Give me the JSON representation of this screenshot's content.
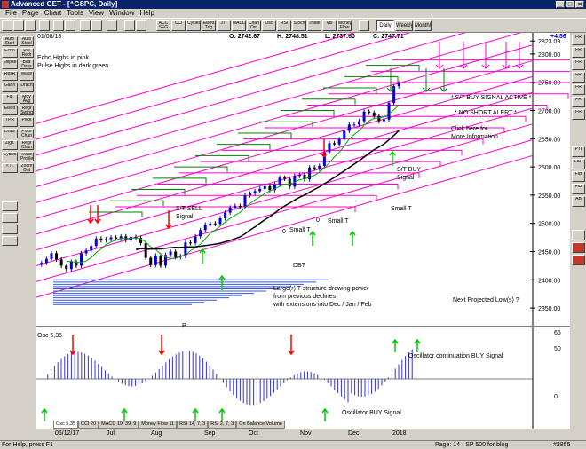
{
  "window": {
    "title": "Advanced GET - [^GSPC, Daily]",
    "controls": [
      "_",
      "□",
      "×"
    ]
  },
  "menu": [
    "File",
    "Page",
    "Chart",
    "Tools",
    "View",
    "Window",
    "Help"
  ],
  "toolbar": {
    "buttons": [
      "ACC SEG",
      "CCI",
      "Cycles",
      "Elliott Trig",
      "JTI",
      "MACD",
      "Chan Ord",
      "Osc",
      "RSI",
      "Stoch",
      "Trade",
      "Vol",
      "Money Flow"
    ],
    "views": [
      "Daily",
      "Weekly",
      "Monthly"
    ],
    "active_view": "Daily"
  },
  "left_tools": [
    "Auto Start",
    "Echo",
    "Ellipse",
    "ResR",
    "Gann",
    "Fib",
    "Elliott",
    "TPR",
    "Draw",
    "ZigZ",
    "Cycles",
    "XTL"
  ],
  "left_tools_2": [
    "Auto Steel",
    "Pul Redr",
    "Bad Days",
    "Make",
    "Drach",
    "Mov Avg",
    "Regr Swing",
    "Pivot",
    "Price Chan",
    "Regr Chan",
    "Trade Profile",
    "Zoom Out"
  ],
  "right_tools": [
    "FR",
    "FR",
    "FR",
    "FR",
    "FR",
    "FR",
    "FR",
    "PTI",
    "ESP",
    "FIB",
    "FIB",
    "AB"
  ],
  "chart_header": {
    "date": "01/08/18",
    "open": "O: 2742.67",
    "high": "H: 2748.51",
    "low": "L: 2737.60",
    "close": "C: 2747.71",
    "change": "+4.56"
  },
  "annotations": {
    "echo": "Echo Highs in pink",
    "pulse": "Pulse Highs in dark green",
    "st_sell": "S/T SELL\nSignal",
    "buy_active": "* S/T BUY SIGNAL ACTIVE *",
    "no_short": "* NO SHORT ALERT *",
    "click_here": "Click here for\nMore Information...",
    "st_buy": "S/T BUY\nSignal",
    "small_t1": "Small T",
    "small_t2": "Small T",
    "small_t3": "Small T",
    "zero1": "0",
    "zero2": "0",
    "dbt": "DBT",
    "large_t": "Large(r) T structure drawing power\nfrom previous declines\nwith extensions into Dec / Jan / Feb",
    "next_low": "Next Projected Low(s) ?",
    "p": "P",
    "osc_cont": "Oscillator continuation BUY Signal",
    "osc_buy": "Oscillator BUY Signal"
  },
  "oscillator": {
    "label": "Osc 5,35",
    "ticks": [
      "65",
      "50",
      "0"
    ]
  },
  "tabs": [
    "Osc 5,35",
    "CCI 20",
    "MACD 19, 39, 9",
    "Money Flow 11",
    "RSI 14, 7, 3",
    "RSI 2, 7, 3",
    "On Balance Volume"
  ],
  "time_axis": [
    "06/12/17",
    "Jul",
    "Aug",
    "Sep",
    "Oct",
    "Nov",
    "Dec",
    "2018"
  ],
  "status": {
    "left": "For Help, press F1",
    "center": "Page: 14 - SP 500 for blog",
    "right": "#2855"
  },
  "chart_data": {
    "type": "candlestick",
    "symbol": "^GSPC",
    "interval": "Daily",
    "x_range": [
      "2017-06-12",
      "2018-01-08"
    ],
    "price_ticks": [
      "2823.09",
      "2800.00",
      "2750.00",
      "2700.00",
      "2650.00",
      "2600.00",
      "2550.00",
      "2500.00",
      "2450.00",
      "2400.00",
      "2350.00"
    ],
    "ylim": [
      2325,
      2825
    ],
    "closes": [
      2430,
      2437,
      2447,
      2436,
      2425,
      2419,
      2432,
      2425,
      2447,
      2452,
      2460,
      2473,
      2470,
      2472,
      2475,
      2473,
      2477,
      2470,
      2476,
      2474,
      2465,
      2439,
      2426,
      2443,
      2425,
      2444,
      2450,
      2440,
      2442,
      2466,
      2465,
      2477,
      2488,
      2498,
      2500,
      2499,
      2509,
      2519,
      2528,
      2531,
      2530,
      2550,
      2553,
      2557,
      2561,
      2566,
      2559,
      2569,
      2581,
      2579,
      2565,
      2584,
      2586,
      2578,
      2599,
      2597,
      2602,
      2626,
      2642,
      2640,
      2649,
      2664,
      2675,
      2675,
      2681,
      2698,
      2696,
      2690,
      2681,
      2684,
      2713,
      2743,
      2748
    ]
  },
  "colors": {
    "up": "#0000cc",
    "down": "#000000",
    "echo": "#ff00cc",
    "pulse": "#008000",
    "buy_arrow": "#00cc00",
    "sell_arrow": "#ff0000",
    "osc": "#3333cc"
  }
}
